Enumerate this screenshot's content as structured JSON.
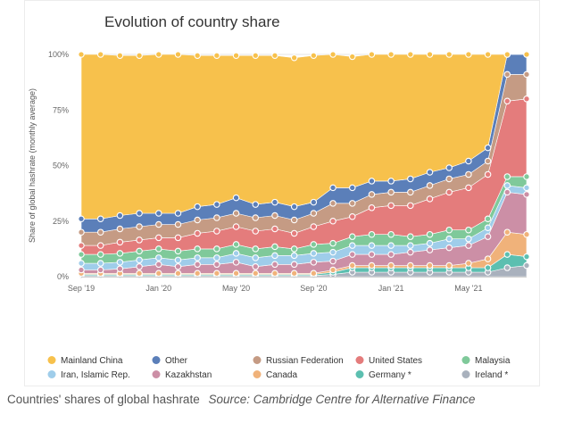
{
  "chart_data": {
    "type": "area",
    "stacked": true,
    "title": "Evolution of country share",
    "ylabel": "Share of global hashrate (monthly average)",
    "xlabel": "",
    "ylim": [
      0,
      100
    ],
    "yticks": [
      "0%",
      "25%",
      "50%",
      "75%",
      "100%"
    ],
    "xticks": [
      {
        "label": "Sep '19",
        "index": 0
      },
      {
        "label": "Jan '20",
        "index": 4
      },
      {
        "label": "May '20",
        "index": 8
      },
      {
        "label": "Sep '20",
        "index": 12
      },
      {
        "label": "Jan '21",
        "index": 16
      },
      {
        "label": "May '21",
        "index": 20
      }
    ],
    "x": [
      "2019-09",
      "2019-10",
      "2019-11",
      "2019-12",
      "2020-01",
      "2020-02",
      "2020-03",
      "2020-04",
      "2020-05",
      "2020-06",
      "2020-07",
      "2020-08",
      "2020-09",
      "2020-10",
      "2020-11",
      "2020-12",
      "2021-01",
      "2021-02",
      "2021-03",
      "2021-04",
      "2021-05",
      "2021-06",
      "2021-07",
      "2021-08"
    ],
    "legend_position": "bottom",
    "series": [
      {
        "name": "Ireland *",
        "color": "#a9b1bd",
        "values": [
          0.5,
          0.5,
          0.5,
          0.5,
          0.5,
          0.5,
          0.5,
          0.5,
          0.5,
          0.5,
          0.5,
          0.5,
          0.5,
          1,
          2,
          2,
          2,
          2,
          2,
          2,
          2,
          2,
          4,
          5
        ]
      },
      {
        "name": "Germany *",
        "color": "#5cbfb0",
        "values": [
          0.5,
          0.5,
          0.5,
          0.5,
          0.5,
          0.5,
          0.5,
          0.5,
          0.5,
          0.5,
          0.5,
          0.5,
          0.5,
          1,
          2,
          2,
          2,
          2,
          2,
          2,
          2,
          2,
          6,
          4
        ]
      },
      {
        "name": "Canada",
        "color": "#f0b27a",
        "values": [
          0.5,
          0.5,
          0.5,
          0.5,
          0.5,
          0.5,
          0.5,
          0.5,
          0.5,
          0.5,
          0.5,
          0.5,
          0.5,
          1,
          1,
          1,
          1,
          1,
          1,
          1,
          2,
          4,
          10,
          10
        ]
      },
      {
        "name": "Kazakhstan",
        "color": "#cc8fa6",
        "values": [
          1.5,
          1.5,
          2,
          3,
          4,
          3,
          4,
          4,
          5,
          3,
          4,
          4,
          5,
          4,
          5,
          5,
          5,
          6,
          7,
          8,
          8,
          10,
          18,
          18
        ]
      },
      {
        "name": "Iran, Islamic Rep.",
        "color": "#9fcdea",
        "values": [
          3,
          3,
          3,
          3,
          3,
          3,
          3,
          3,
          4,
          4,
          4,
          4,
          4,
          4,
          4,
          4,
          4,
          3,
          3,
          4,
          3,
          4,
          3,
          3
        ]
      },
      {
        "name": "Malaysia",
        "color": "#7fc99a",
        "values": [
          4,
          4,
          4,
          4,
          4,
          4,
          4,
          4,
          4,
          4,
          4,
          3,
          4,
          4,
          4,
          5,
          5,
          4,
          4,
          4,
          4,
          4,
          4,
          5
        ]
      },
      {
        "name": "United States",
        "color": "#e47c7c",
        "values": [
          4,
          4,
          5,
          5,
          5,
          6,
          7,
          8,
          8,
          8,
          8,
          7,
          8,
          10,
          9,
          12,
          13,
          14,
          16,
          17,
          19,
          20,
          34,
          35
        ]
      },
      {
        "name": "Russian Federation",
        "color": "#c59b84",
        "values": [
          6,
          6,
          6,
          6,
          6,
          6,
          6,
          6,
          6,
          6,
          6,
          6,
          6,
          8,
          6,
          6,
          6,
          6,
          6,
          6,
          6,
          6,
          12,
          11
        ]
      },
      {
        "name": "Other",
        "color": "#5b7fb9",
        "values": [
          6,
          6,
          6,
          6,
          5,
          5,
          6,
          6,
          7,
          6,
          6,
          6,
          5,
          7,
          7,
          6,
          5,
          6,
          6,
          5,
          6,
          6,
          9,
          9
        ]
      },
      {
        "name": "Mainland China",
        "color": "#f7c14c",
        "values": [
          75,
          74,
          72,
          71,
          72,
          71.5,
          68,
          67,
          64,
          67,
          66,
          67,
          66,
          60,
          59,
          57,
          58,
          57,
          54,
          51,
          48,
          42,
          0,
          0
        ]
      }
    ],
    "legend": [
      "Mainland China",
      "Other",
      "Russian Federation",
      "United States",
      "Malaysia",
      "Iran, Islamic Rep.",
      "Kazakhstan",
      "Canada",
      "Germany *",
      "Ireland *"
    ]
  },
  "caption": {
    "text": "Countries' shares of global hashrate",
    "source": "Source: Cambridge Centre for Alternative Finance"
  }
}
